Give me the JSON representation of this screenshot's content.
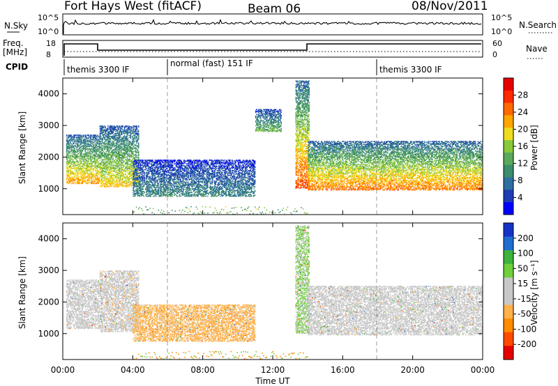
{
  "header": {
    "station": "Fort Hays West (fitACF)",
    "beam": "Beam 06",
    "date": "08/Nov/2011"
  },
  "top_panels": {
    "nsky_label": "N.Sky",
    "nsky_ticks": [
      "10^5",
      "10^0"
    ],
    "nsearch_label": "N.Search",
    "freq_label": "Freq.",
    "freq_unit": "[MHz]",
    "freq_ticks": [
      "18",
      "8"
    ],
    "nave_label": "Nave",
    "nave_ticks": [
      "60",
      "0"
    ],
    "cpid_label": "CPID",
    "cpid_segments": [
      "themis 3300 IF",
      "normal (fast) 151 IF",
      "themis 3300 IF"
    ]
  },
  "colors": {
    "power_scale": [
      "#0000ff",
      "#1e3cb4",
      "#2f6fa0",
      "#3c8c6e",
      "#5aa85a",
      "#8ac83c",
      "#f0dc1e",
      "#ffa500",
      "#ff6a00",
      "#ff2a00",
      "#e60000"
    ],
    "velocity_scale": [
      "#e60000",
      "#ff4a00",
      "#ff8c00",
      "#ffb14a",
      "#c8c8c8",
      "#c8c8c8",
      "#6fd03c",
      "#3cb43c",
      "#1e6ed2",
      "#1432c8"
    ]
  },
  "chart_data": [
    {
      "type": "heatmap",
      "name_role": "power",
      "xlabel": "",
      "ylabel": "Slant Range [km]",
      "x_ticks": [
        "00:00",
        "04:00",
        "08:00",
        "12:00",
        "16:00",
        "20:00",
        "00:00"
      ],
      "y_ticks": [
        "1000",
        "2000",
        "3000",
        "4000"
      ],
      "xlim_hours": [
        0,
        24
      ],
      "ylim_km": [
        180,
        4500
      ],
      "colorbar_label": "Power [dB]",
      "colorbar_ticks": [
        "28",
        "24",
        "20",
        "16",
        "12",
        "8",
        "4"
      ],
      "colorbar_range": [
        0,
        32
      ],
      "features": [
        {
          "t0": 0.2,
          "t1": 2.1,
          "r0": 1150,
          "r1": 2700,
          "power": 20
        },
        {
          "t0": 2.1,
          "t1": 4.3,
          "r0": 1050,
          "r1": 3000,
          "power": 18
        },
        {
          "t0": 4.0,
          "t1": 11.0,
          "r0": 750,
          "r1": 1900,
          "power": 8
        },
        {
          "t0": 11.0,
          "t1": 12.5,
          "r0": 2800,
          "r1": 3500,
          "power": 12
        },
        {
          "t0": 13.3,
          "t1": 14.1,
          "r0": 1000,
          "r1": 4400,
          "power": 24
        },
        {
          "t0": 14.0,
          "t1": 24.0,
          "r0": 950,
          "r1": 2500,
          "power": 22
        }
      ]
    },
    {
      "type": "heatmap",
      "name_role": "velocity",
      "xlabel": "Time UT",
      "ylabel": "Slant Range [km]",
      "x_ticks": [
        "00:00",
        "04:00",
        "08:00",
        "12:00",
        "16:00",
        "20:00",
        "00:00"
      ],
      "y_ticks": [
        "1000",
        "2000",
        "3000",
        "4000"
      ],
      "xlim_hours": [
        0,
        24
      ],
      "ylim_km": [
        180,
        4500
      ],
      "colorbar_label": "Velocity [m s⁻¹]",
      "colorbar_ticks": [
        "200",
        "100",
        "50",
        "15",
        "-15",
        "-50",
        "-100",
        "-200"
      ],
      "colorbar_range": [
        -250,
        250
      ],
      "features": [
        {
          "t0": 0.2,
          "t1": 2.1,
          "r0": 1150,
          "r1": 2700,
          "velocity": 0
        },
        {
          "t0": 2.1,
          "t1": 4.3,
          "r0": 1050,
          "r1": 3000,
          "velocity": -30
        },
        {
          "t0": 4.0,
          "t1": 11.0,
          "r0": 750,
          "r1": 1900,
          "velocity": -80
        },
        {
          "t0": 13.3,
          "t1": 14.1,
          "r0": 1000,
          "r1": 4400,
          "velocity": 60
        },
        {
          "t0": 14.0,
          "t1": 24.0,
          "r0": 950,
          "r1": 2500,
          "velocity": 0
        }
      ]
    }
  ]
}
